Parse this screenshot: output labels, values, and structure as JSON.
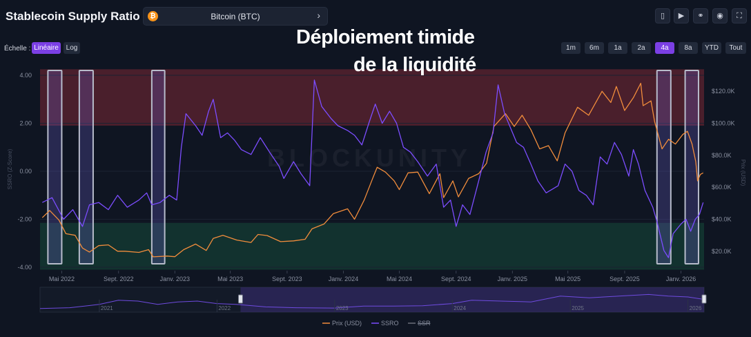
{
  "header": {
    "title": "Stablecoin Supply Ratio",
    "asset": {
      "label": "Bitcoin (BTC)",
      "icon": "bitcoin-icon",
      "icon_glyph": "₿"
    },
    "toolbar": {
      "icons": [
        "tablet-icon",
        "play-icon",
        "link-icon",
        "camera-icon",
        "fullscreen-icon"
      ],
      "glyphs": [
        "▯",
        "▶",
        "⚭",
        "◉",
        "⛶"
      ]
    }
  },
  "scale": {
    "label": "Échelle :",
    "options": [
      "Linéaire",
      "Log"
    ],
    "selected": "Linéaire"
  },
  "ranges": {
    "options": [
      "1m",
      "6m",
      "1a",
      "2a",
      "4a",
      "8a",
      "YTD",
      "Tout"
    ],
    "selected": "4a"
  },
  "overlay": {
    "line1": "Déploiement timide",
    "line2": "de la liquidité"
  },
  "watermark": "BLOCKUNITY",
  "colors": {
    "price": "#f28d3c",
    "ssro": "#7c4dff",
    "ssr": "#6b6f7a",
    "red_zone": "#4a1f2c",
    "green_zone": "#12322f",
    "accent": "#7b3fe4"
  },
  "chart_data": {
    "type": "line",
    "title": "",
    "x_axis": {
      "ticks": [
        "Mai 2022",
        "Sept. 2022",
        "Janv. 2023",
        "Mai 2023",
        "Sept. 2023",
        "Janv. 2024",
        "Mai 2024",
        "Sept. 2024",
        "Janv. 2025",
        "Mai 2025",
        "Sept. 2025",
        "Janv. 2026"
      ],
      "range": [
        "2022-03-15",
        "2026-02-20"
      ]
    },
    "y_left": {
      "label": "SSRO (Z-Score)",
      "range": [
        -4.0,
        4.0
      ],
      "ticks": [
        "4.00",
        "2.00",
        "0.00",
        "-2.00",
        "-4.00"
      ]
    },
    "y_right": {
      "label": "Prix (USD)",
      "range": [
        10000,
        130000
      ],
      "ticks": [
        "$120.0K",
        "$100.0K",
        "$80.0K",
        "$60.0K",
        "$40.0K",
        "$20.0K"
      ]
    },
    "zones": [
      {
        "name": "overheated",
        "from": 1.9,
        "to": 4.25
      },
      {
        "name": "undervalued",
        "from": -4.1,
        "to": -2.15
      }
    ],
    "highlight_windows": [
      [
        "2022-04-01",
        "2022-05-01"
      ],
      [
        "2022-06-08",
        "2022-07-08"
      ],
      [
        "2022-11-12",
        "2022-12-10"
      ],
      [
        "2025-11-10",
        "2025-12-10"
      ],
      [
        "2026-01-10",
        "2026-02-08"
      ]
    ],
    "series": [
      {
        "name": "Prix (USD)",
        "axis": "right",
        "points": [
          [
            "2022-03-20",
            41000
          ],
          [
            "2022-04-05",
            45500
          ],
          [
            "2022-04-25",
            39500
          ],
          [
            "2022-05-10",
            31000
          ],
          [
            "2022-05-30",
            30000
          ],
          [
            "2022-06-15",
            22000
          ],
          [
            "2022-06-30",
            19500
          ],
          [
            "2022-07-20",
            23500
          ],
          [
            "2022-08-10",
            24000
          ],
          [
            "2022-08-30",
            20000
          ],
          [
            "2022-09-15",
            20000
          ],
          [
            "2022-10-15",
            19300
          ],
          [
            "2022-11-05",
            21000
          ],
          [
            "2022-11-15",
            16500
          ],
          [
            "2022-12-15",
            17000
          ],
          [
            "2023-01-01",
            16600
          ],
          [
            "2023-01-20",
            21000
          ],
          [
            "2023-02-15",
            24500
          ],
          [
            "2023-03-10",
            20500
          ],
          [
            "2023-03-25",
            28000
          ],
          [
            "2023-04-15",
            30000
          ],
          [
            "2023-05-15",
            27000
          ],
          [
            "2023-06-15",
            25500
          ],
          [
            "2023-06-30",
            30500
          ],
          [
            "2023-07-20",
            29800
          ],
          [
            "2023-08-18",
            26000
          ],
          [
            "2023-09-15",
            26500
          ],
          [
            "2023-10-10",
            27500
          ],
          [
            "2023-10-25",
            34000
          ],
          [
            "2023-11-20",
            37000
          ],
          [
            "2023-12-10",
            43500
          ],
          [
            "2024-01-10",
            46500
          ],
          [
            "2024-01-25",
            40000
          ],
          [
            "2024-02-15",
            52000
          ],
          [
            "2024-03-05",
            66000
          ],
          [
            "2024-03-14",
            72500
          ],
          [
            "2024-04-01",
            69500
          ],
          [
            "2024-04-20",
            64000
          ],
          [
            "2024-05-01",
            58500
          ],
          [
            "2024-05-20",
            69000
          ],
          [
            "2024-06-10",
            69500
          ],
          [
            "2024-07-05",
            56000
          ],
          [
            "2024-07-28",
            68500
          ],
          [
            "2024-08-05",
            53500
          ],
          [
            "2024-08-25",
            64000
          ],
          [
            "2024-09-06",
            54000
          ],
          [
            "2024-09-28",
            65500
          ],
          [
            "2024-10-20",
            68500
          ],
          [
            "2024-11-06",
            75000
          ],
          [
            "2024-11-22",
            98000
          ],
          [
            "2024-12-17",
            106000
          ],
          [
            "2025-01-05",
            98000
          ],
          [
            "2025-01-22",
            105000
          ],
          [
            "2025-02-10",
            96000
          ],
          [
            "2025-03-01",
            84000
          ],
          [
            "2025-03-20",
            86000
          ],
          [
            "2025-04-08",
            76500
          ],
          [
            "2025-04-25",
            94000
          ],
          [
            "2025-05-22",
            110000
          ],
          [
            "2025-06-15",
            105000
          ],
          [
            "2025-07-14",
            120000
          ],
          [
            "2025-08-02",
            113000
          ],
          [
            "2025-08-14",
            123000
          ],
          [
            "2025-09-01",
            108000
          ],
          [
            "2025-09-20",
            116000
          ],
          [
            "2025-10-06",
            125000
          ],
          [
            "2025-10-11",
            111000
          ],
          [
            "2025-10-28",
            114000
          ],
          [
            "2025-11-05",
            101000
          ],
          [
            "2025-11-21",
            84000
          ],
          [
            "2025-12-05",
            90000
          ],
          [
            "2025-12-20",
            87000
          ],
          [
            "2026-01-05",
            93000
          ],
          [
            "2026-01-15",
            95000
          ],
          [
            "2026-01-25",
            87000
          ],
          [
            "2026-02-02",
            76000
          ],
          [
            "2026-02-06",
            64000
          ],
          [
            "2026-02-12",
            68000
          ],
          [
            "2026-02-18",
            69000
          ]
        ]
      },
      {
        "name": "SSRO",
        "axis": "left",
        "points": [
          [
            "2022-03-20",
            -1.3
          ],
          [
            "2022-04-10",
            -1.1
          ],
          [
            "2022-05-05",
            -2.0
          ],
          [
            "2022-05-25",
            -1.6
          ],
          [
            "2022-06-15",
            -2.3
          ],
          [
            "2022-06-30",
            -1.4
          ],
          [
            "2022-07-20",
            -1.3
          ],
          [
            "2022-08-10",
            -1.6
          ],
          [
            "2022-08-30",
            -1.0
          ],
          [
            "2022-09-20",
            -1.5
          ],
          [
            "2022-10-15",
            -1.2
          ],
          [
            "2022-11-01",
            -0.9
          ],
          [
            "2022-11-12",
            -1.4
          ],
          [
            "2022-11-30",
            -1.3
          ],
          [
            "2022-12-20",
            -1.0
          ],
          [
            "2023-01-05",
            -1.2
          ],
          [
            "2023-01-15",
            1.0
          ],
          [
            "2023-01-25",
            2.4
          ],
          [
            "2023-02-15",
            1.9
          ],
          [
            "2023-03-01",
            1.5
          ],
          [
            "2023-03-15",
            2.5
          ],
          [
            "2023-03-25",
            3.0
          ],
          [
            "2023-04-10",
            1.4
          ],
          [
            "2023-04-25",
            1.6
          ],
          [
            "2023-05-10",
            1.3
          ],
          [
            "2023-05-25",
            0.9
          ],
          [
            "2023-06-15",
            0.7
          ],
          [
            "2023-07-05",
            1.4
          ],
          [
            "2023-07-25",
            0.8
          ],
          [
            "2023-08-15",
            0.2
          ],
          [
            "2023-08-25",
            -0.3
          ],
          [
            "2023-09-15",
            0.4
          ],
          [
            "2023-10-01",
            -0.1
          ],
          [
            "2023-10-20",
            -0.6
          ],
          [
            "2023-10-30",
            3.8
          ],
          [
            "2023-11-15",
            2.7
          ],
          [
            "2023-12-05",
            2.2
          ],
          [
            "2023-12-20",
            1.9
          ],
          [
            "2024-01-10",
            1.7
          ],
          [
            "2024-01-25",
            1.5
          ],
          [
            "2024-02-10",
            1.1
          ],
          [
            "2024-02-25",
            2.0
          ],
          [
            "2024-03-10",
            2.8
          ],
          [
            "2024-03-25",
            2.0
          ],
          [
            "2024-04-10",
            2.5
          ],
          [
            "2024-04-25",
            2.0
          ],
          [
            "2024-05-10",
            1.0
          ],
          [
            "2024-05-25",
            0.8
          ],
          [
            "2024-06-10",
            0.4
          ],
          [
            "2024-07-01",
            -0.2
          ],
          [
            "2024-07-20",
            0.3
          ],
          [
            "2024-08-05",
            -1.5
          ],
          [
            "2024-08-20",
            -1.2
          ],
          [
            "2024-09-01",
            -2.3
          ],
          [
            "2024-09-15",
            -1.4
          ],
          [
            "2024-10-01",
            -1.8
          ],
          [
            "2024-10-20",
            -0.4
          ],
          [
            "2024-11-05",
            0.8
          ],
          [
            "2024-11-20",
            1.6
          ],
          [
            "2024-12-01",
            3.6
          ],
          [
            "2024-12-15",
            2.4
          ],
          [
            "2025-01-10",
            1.2
          ],
          [
            "2025-01-25",
            1.0
          ],
          [
            "2025-02-10",
            0.3
          ],
          [
            "2025-02-25",
            -0.4
          ],
          [
            "2025-03-15",
            -0.9
          ],
          [
            "2025-04-10",
            -0.6
          ],
          [
            "2025-04-25",
            0.3
          ],
          [
            "2025-05-10",
            0.0
          ],
          [
            "2025-05-25",
            -0.8
          ],
          [
            "2025-06-10",
            -1.0
          ],
          [
            "2025-06-25",
            -1.4
          ],
          [
            "2025-07-10",
            0.6
          ],
          [
            "2025-07-25",
            0.3
          ],
          [
            "2025-08-10",
            1.2
          ],
          [
            "2025-08-25",
            0.7
          ],
          [
            "2025-09-10",
            -0.2
          ],
          [
            "2025-09-20",
            0.9
          ],
          [
            "2025-10-01",
            0.3
          ],
          [
            "2025-10-15",
            -0.8
          ],
          [
            "2025-11-01",
            -1.5
          ],
          [
            "2025-11-10",
            -2.1
          ],
          [
            "2025-11-25",
            -3.3
          ],
          [
            "2025-12-05",
            -3.6
          ],
          [
            "2025-12-15",
            -2.6
          ],
          [
            "2026-01-01",
            -2.2
          ],
          [
            "2026-01-12",
            -2.0
          ],
          [
            "2026-01-22",
            -2.5
          ],
          [
            "2026-02-01",
            -2.0
          ],
          [
            "2026-02-10",
            -1.8
          ],
          [
            "2026-02-18",
            -1.3
          ]
        ]
      }
    ],
    "navigator": {
      "ticks": [
        "2021",
        "2022",
        "2023",
        "2024",
        "2025",
        "2026"
      ],
      "range": [
        "2020-07-01",
        "2026-02-20"
      ],
      "selection": [
        "2022-03-15",
        "2026-02-20"
      ],
      "values": [
        [
          "2020-07-01",
          0.05
        ],
        [
          "2020-10-01",
          0.1
        ],
        [
          "2021-01-01",
          0.3
        ],
        [
          "2021-03-01",
          0.55
        ],
        [
          "2021-05-01",
          0.5
        ],
        [
          "2021-07-01",
          0.3
        ],
        [
          "2021-09-01",
          0.45
        ],
        [
          "2021-11-01",
          0.5
        ],
        [
          "2022-01-01",
          0.35
        ],
        [
          "2022-03-01",
          0.3
        ],
        [
          "2022-06-01",
          0.15
        ],
        [
          "2022-09-01",
          0.1
        ],
        [
          "2023-01-01",
          0.08
        ],
        [
          "2023-04-01",
          0.2
        ],
        [
          "2023-07-01",
          0.2
        ],
        [
          "2023-10-01",
          0.22
        ],
        [
          "2024-01-01",
          0.35
        ],
        [
          "2024-03-01",
          0.55
        ],
        [
          "2024-06-01",
          0.5
        ],
        [
          "2024-09-01",
          0.45
        ],
        [
          "2024-12-01",
          0.8
        ],
        [
          "2025-03-01",
          0.7
        ],
        [
          "2025-06-01",
          0.8
        ],
        [
          "2025-09-01",
          0.9
        ],
        [
          "2025-11-01",
          0.8
        ],
        [
          "2026-01-01",
          0.75
        ],
        [
          "2026-02-20",
          0.6
        ]
      ]
    },
    "legend": {
      "placement": "bottom-center",
      "entries": [
        "Prix (USD)",
        "SSRO",
        "SSR"
      ]
    }
  }
}
